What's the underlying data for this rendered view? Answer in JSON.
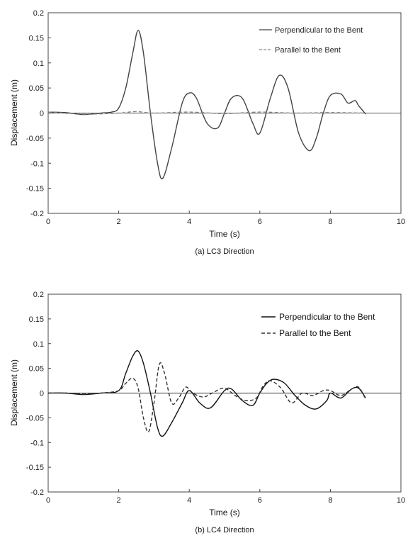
{
  "chart_data": [
    {
      "type": "line",
      "caption": "(a) LC3 Direction",
      "xlabel": "Time (s)",
      "ylabel": "Displacement (m)",
      "xlim": [
        0,
        10
      ],
      "ylim": [
        -0.2,
        0.2
      ],
      "xticks": [
        "0",
        "2",
        "4",
        "6",
        "8",
        "10"
      ],
      "yticks": [
        "-0.2",
        "-0.15",
        "-0.1",
        "-0.05",
        "0",
        "0.05",
        "0.1",
        "0.15",
        "0.2"
      ],
      "legend_position": "top-right",
      "series": [
        {
          "name": "Perpendicular to the Bent",
          "color": "#444444",
          "dash": "solid",
          "x": [
            0,
            0.5,
            1.0,
            1.5,
            1.8,
            2.0,
            2.2,
            2.4,
            2.55,
            2.7,
            2.9,
            3.1,
            3.25,
            3.5,
            3.8,
            4.0,
            4.2,
            4.5,
            4.8,
            5.0,
            5.2,
            5.5,
            5.8,
            6.0,
            6.3,
            6.55,
            6.8,
            7.1,
            7.4,
            7.6,
            7.8,
            8.0,
            8.3,
            8.5,
            8.7,
            8.8,
            9.0
          ],
          "y": [
            0.002,
            0.001,
            -0.003,
            0.0,
            0.002,
            0.01,
            0.05,
            0.12,
            0.165,
            0.12,
            0.0,
            -0.1,
            -0.13,
            -0.07,
            0.02,
            0.04,
            0.03,
            -0.02,
            -0.03,
            0.0,
            0.03,
            0.03,
            -0.02,
            -0.04,
            0.03,
            0.075,
            0.05,
            -0.04,
            -0.075,
            -0.05,
            0.0,
            0.035,
            0.038,
            0.02,
            0.025,
            0.015,
            -0.002
          ]
        },
        {
          "name": "Parallel to the Bent",
          "color": "#888888",
          "dash": "dashed",
          "x": [
            0,
            1.0,
            2.0,
            2.5,
            3.0,
            4.0,
            5.0,
            6.0,
            7.0,
            8.0,
            9.0
          ],
          "y": [
            0.002,
            -0.002,
            0.0,
            0.003,
            0.0,
            0.002,
            -0.001,
            0.002,
            0.0,
            0.001,
            0.0
          ]
        }
      ]
    },
    {
      "type": "line",
      "caption": "(b) LC4 Direction",
      "xlabel": "Time (s)",
      "ylabel": "Displacement (m)",
      "xlim": [
        0,
        10
      ],
      "ylim": [
        -0.2,
        0.2
      ],
      "xticks": [
        "0",
        "2",
        "4",
        "6",
        "8",
        "10"
      ],
      "yticks": [
        "-0.2",
        "-0.15",
        "-0.1",
        "-0.05",
        "0",
        "0.05",
        "0.1",
        "0.15",
        "0.2"
      ],
      "legend_position": "top-right",
      "series": [
        {
          "name": "Perpendicular to the Bent",
          "color": "#111111",
          "dash": "solid",
          "x": [
            0,
            0.5,
            1.0,
            1.5,
            2.0,
            2.2,
            2.4,
            2.55,
            2.7,
            2.9,
            3.1,
            3.25,
            3.5,
            3.8,
            4.0,
            4.3,
            4.6,
            5.0,
            5.2,
            5.5,
            5.8,
            6.0,
            6.2,
            6.4,
            6.7,
            7.0,
            7.3,
            7.6,
            7.9,
            8.0,
            8.3,
            8.6,
            8.8,
            9.0
          ],
          "y": [
            0.0,
            0.0,
            -0.003,
            0.0,
            0.005,
            0.04,
            0.075,
            0.085,
            0.06,
            0.0,
            -0.07,
            -0.087,
            -0.06,
            -0.02,
            0.005,
            -0.02,
            -0.03,
            0.005,
            0.008,
            -0.015,
            -0.025,
            0.0,
            0.02,
            0.028,
            0.02,
            -0.005,
            -0.025,
            -0.032,
            -0.015,
            0.0,
            -0.01,
            0.008,
            0.01,
            -0.01
          ]
        },
        {
          "name": "Parallel to the Bent",
          "color": "#333333",
          "dash": "dashed",
          "x": [
            0,
            0.5,
            1.0,
            1.5,
            2.0,
            2.2,
            2.4,
            2.55,
            2.7,
            2.85,
            3.0,
            3.15,
            3.3,
            3.5,
            3.7,
            3.9,
            4.1,
            4.4,
            4.7,
            5.0,
            5.3,
            5.6,
            5.9,
            6.1,
            6.3,
            6.6,
            6.9,
            7.2,
            7.5,
            7.8,
            8.0,
            8.3,
            8.6,
            8.8,
            9.0
          ],
          "y": [
            0.0,
            0.0,
            -0.002,
            0.0,
            0.005,
            0.02,
            0.03,
            0.01,
            -0.05,
            -0.078,
            -0.02,
            0.058,
            0.04,
            -0.02,
            -0.01,
            0.012,
            0.0,
            -0.008,
            0.002,
            0.01,
            -0.005,
            -0.015,
            -0.01,
            0.015,
            0.025,
            0.01,
            -0.02,
            0.0,
            -0.005,
            0.005,
            0.005,
            -0.005,
            0.008,
            0.012,
            -0.012
          ]
        }
      ]
    }
  ]
}
